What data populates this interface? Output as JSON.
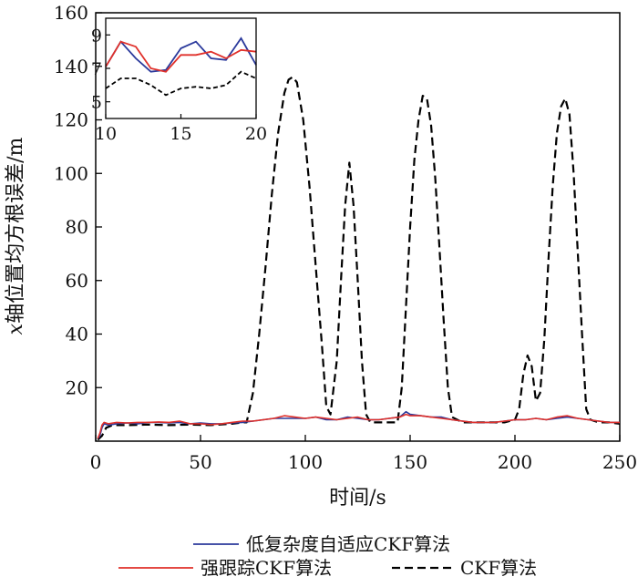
{
  "chart_data": {
    "type": "line",
    "xlabel": "时间/s",
    "ylabel_italic": "x",
    "ylabel_rest": "轴位置均方根误差/m",
    "xlim": [
      0,
      250
    ],
    "ylim": [
      0,
      160
    ],
    "xticks": [
      0,
      50,
      100,
      150,
      200,
      250
    ],
    "yticks": [
      20,
      40,
      60,
      80,
      100,
      120,
      140,
      160
    ],
    "grid": false,
    "legend_position": "bottom",
    "series": [
      {
        "name": "低复杂度自适应CKF算法",
        "color": "#2b3a9c",
        "style": "solid",
        "points": [
          [
            1,
            1
          ],
          [
            2,
            2
          ],
          [
            3,
            5
          ],
          [
            4,
            6.5
          ],
          [
            6,
            6
          ],
          [
            10,
            6.5
          ],
          [
            15,
            6.8
          ],
          [
            20,
            6.5
          ],
          [
            25,
            7
          ],
          [
            30,
            7
          ],
          [
            35,
            6.8
          ],
          [
            40,
            7
          ],
          [
            45,
            6.5
          ],
          [
            50,
            6.8
          ],
          [
            55,
            6.5
          ],
          [
            60,
            6.5
          ],
          [
            65,
            6.8
          ],
          [
            70,
            7
          ],
          [
            75,
            7.5
          ],
          [
            80,
            8
          ],
          [
            85,
            8.5
          ],
          [
            90,
            8.5
          ],
          [
            95,
            8.5
          ],
          [
            100,
            8.5
          ],
          [
            105,
            9
          ],
          [
            110,
            8
          ],
          [
            115,
            8
          ],
          [
            120,
            9
          ],
          [
            125,
            8.5
          ],
          [
            130,
            8
          ],
          [
            135,
            8
          ],
          [
            140,
            8.5
          ],
          [
            145,
            9
          ],
          [
            148,
            11
          ],
          [
            150,
            10
          ],
          [
            155,
            9.5
          ],
          [
            160,
            9
          ],
          [
            165,
            9
          ],
          [
            170,
            8
          ],
          [
            175,
            7.5
          ],
          [
            180,
            7
          ],
          [
            185,
            7
          ],
          [
            190,
            7
          ],
          [
            195,
            7.5
          ],
          [
            200,
            8
          ],
          [
            205,
            8
          ],
          [
            210,
            8.5
          ],
          [
            215,
            8
          ],
          [
            220,
            8.5
          ],
          [
            225,
            9
          ],
          [
            230,
            8.5
          ],
          [
            235,
            8
          ],
          [
            240,
            7.5
          ],
          [
            245,
            7
          ],
          [
            250,
            7
          ]
        ]
      },
      {
        "name": "强跟踪CKF算法",
        "color": "#e0302a",
        "style": "solid",
        "points": [
          [
            1,
            1
          ],
          [
            2,
            3
          ],
          [
            3,
            6
          ],
          [
            4,
            7
          ],
          [
            6,
            6.5
          ],
          [
            10,
            7
          ],
          [
            15,
            6.8
          ],
          [
            20,
            7
          ],
          [
            25,
            7
          ],
          [
            30,
            7.2
          ],
          [
            35,
            7
          ],
          [
            40,
            7.5
          ],
          [
            45,
            6.5
          ],
          [
            50,
            6.5
          ],
          [
            55,
            6.2
          ],
          [
            60,
            6.5
          ],
          [
            65,
            7
          ],
          [
            70,
            7.5
          ],
          [
            75,
            7.5
          ],
          [
            80,
            8
          ],
          [
            85,
            8.5
          ],
          [
            90,
            9.5
          ],
          [
            95,
            9
          ],
          [
            100,
            8.5
          ],
          [
            105,
            9
          ],
          [
            110,
            8.5
          ],
          [
            115,
            8
          ],
          [
            120,
            8.5
          ],
          [
            125,
            9
          ],
          [
            130,
            8
          ],
          [
            135,
            8
          ],
          [
            140,
            8.5
          ],
          [
            145,
            9
          ],
          [
            148,
            10
          ],
          [
            150,
            9.5
          ],
          [
            155,
            9.5
          ],
          [
            160,
            9
          ],
          [
            165,
            8.5
          ],
          [
            170,
            8
          ],
          [
            175,
            7.5
          ],
          [
            180,
            7
          ],
          [
            185,
            7
          ],
          [
            190,
            7
          ],
          [
            195,
            7.5
          ],
          [
            200,
            8
          ],
          [
            205,
            8
          ],
          [
            210,
            8.5
          ],
          [
            215,
            8
          ],
          [
            220,
            9
          ],
          [
            225,
            9.5
          ],
          [
            230,
            8.5
          ],
          [
            235,
            8
          ],
          [
            240,
            7.5
          ],
          [
            245,
            7
          ],
          [
            250,
            7
          ]
        ]
      },
      {
        "name": "CKF算法",
        "color": "#000000",
        "style": "dashed",
        "points": [
          [
            1,
            0.5
          ],
          [
            3,
            2
          ],
          [
            5,
            5
          ],
          [
            8,
            6
          ],
          [
            15,
            6
          ],
          [
            25,
            6.2
          ],
          [
            35,
            6
          ],
          [
            45,
            6.2
          ],
          [
            55,
            6
          ],
          [
            65,
            6.5
          ],
          [
            70,
            7
          ],
          [
            72,
            7
          ],
          [
            75,
            18
          ],
          [
            78,
            40
          ],
          [
            81,
            65
          ],
          [
            84,
            92
          ],
          [
            87,
            115
          ],
          [
            90,
            130
          ],
          [
            92,
            135
          ],
          [
            94,
            136
          ],
          [
            96,
            134
          ],
          [
            99,
            120
          ],
          [
            102,
            95
          ],
          [
            105,
            65
          ],
          [
            108,
            35
          ],
          [
            110,
            13
          ],
          [
            112,
            10
          ],
          [
            115,
            30
          ],
          [
            117,
            60
          ],
          [
            119,
            88
          ],
          [
            121,
            104
          ],
          [
            123,
            88
          ],
          [
            125,
            60
          ],
          [
            127,
            30
          ],
          [
            129,
            10
          ],
          [
            131,
            7
          ],
          [
            135,
            7
          ],
          [
            140,
            7
          ],
          [
            144,
            7
          ],
          [
            146,
            20
          ],
          [
            148,
            50
          ],
          [
            150,
            80
          ],
          [
            152,
            105
          ],
          [
            154,
            120
          ],
          [
            156,
            129
          ],
          [
            158,
            128
          ],
          [
            160,
            118
          ],
          [
            162,
            98
          ],
          [
            164,
            72
          ],
          [
            166,
            45
          ],
          [
            168,
            20
          ],
          [
            170,
            9
          ],
          [
            175,
            7
          ],
          [
            180,
            7
          ],
          [
            190,
            7
          ],
          [
            195,
            7
          ],
          [
            200,
            8
          ],
          [
            202,
            12
          ],
          [
            204,
            25
          ],
          [
            206,
            32
          ],
          [
            208,
            28
          ],
          [
            210,
            15
          ],
          [
            212,
            18
          ],
          [
            214,
            38
          ],
          [
            216,
            68
          ],
          [
            218,
            95
          ],
          [
            220,
            115
          ],
          [
            222,
            125
          ],
          [
            224,
            128
          ],
          [
            226,
            122
          ],
          [
            228,
            100
          ],
          [
            230,
            70
          ],
          [
            232,
            40
          ],
          [
            234,
            12
          ],
          [
            236,
            8
          ],
          [
            240,
            7
          ],
          [
            245,
            7
          ],
          [
            250,
            6.5
          ]
        ]
      }
    ],
    "inset": {
      "xlim": [
        10,
        20
      ],
      "ylim": [
        4,
        10
      ],
      "xticks": [
        10,
        15,
        20
      ],
      "yticks": [
        5,
        7,
        9
      ],
      "series": [
        {
          "name": "低复杂度自适应CKF算法",
          "color": "#2b3a9c",
          "style": "solid",
          "points": [
            [
              10,
              7.1
            ],
            [
              11,
              8.6
            ],
            [
              12,
              7.6
            ],
            [
              13,
              6.8
            ],
            [
              14,
              6.9
            ],
            [
              15,
              8.2
            ],
            [
              16,
              8.6
            ],
            [
              17,
              7.6
            ],
            [
              18,
              7.5
            ],
            [
              19,
              8.8
            ],
            [
              20,
              7.2
            ]
          ]
        },
        {
          "name": "强跟踪CKF算法",
          "color": "#e0302a",
          "style": "solid",
          "points": [
            [
              10,
              7.1
            ],
            [
              11,
              8.6
            ],
            [
              12,
              8.3
            ],
            [
              13,
              7
            ],
            [
              14,
              6.8
            ],
            [
              15,
              7.8
            ],
            [
              16,
              7.8
            ],
            [
              17,
              8
            ],
            [
              18,
              7.6
            ],
            [
              19,
              8.1
            ],
            [
              20,
              8
            ]
          ]
        },
        {
          "name": "CKF算法",
          "color": "#000000",
          "style": "dashed",
          "points": [
            [
              10,
              5.8
            ],
            [
              11,
              6.4
            ],
            [
              12,
              6.4
            ],
            [
              13,
              6
            ],
            [
              14,
              5.4
            ],
            [
              15,
              5.8
            ],
            [
              16,
              5.9
            ],
            [
              17,
              5.8
            ],
            [
              18,
              6
            ],
            [
              19,
              6.8
            ],
            [
              20,
              6.4
            ]
          ]
        }
      ]
    }
  }
}
